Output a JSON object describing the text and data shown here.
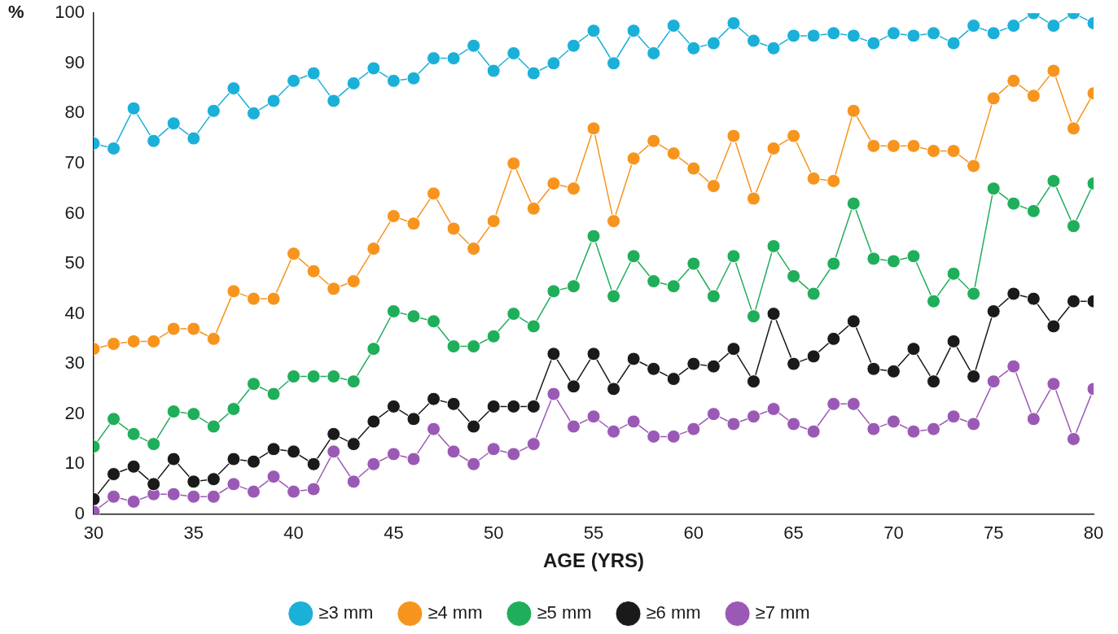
{
  "chart_data": {
    "type": "line",
    "xlabel": "AGE (YRS)",
    "ylabel": "%",
    "x": [
      30,
      31,
      32,
      33,
      34,
      35,
      36,
      37,
      38,
      39,
      40,
      41,
      42,
      43,
      44,
      45,
      46,
      47,
      48,
      49,
      50,
      51,
      52,
      53,
      54,
      55,
      56,
      57,
      58,
      59,
      60,
      61,
      62,
      63,
      64,
      65,
      66,
      67,
      68,
      69,
      70,
      71,
      72,
      73,
      74,
      75,
      76,
      77,
      78,
      79,
      80
    ],
    "xlim": [
      30,
      80
    ],
    "xticks": [
      30,
      35,
      40,
      45,
      50,
      55,
      60,
      65,
      70,
      75,
      80
    ],
    "ylim": [
      0,
      100
    ],
    "yticks": [
      0,
      10,
      20,
      30,
      40,
      50,
      60,
      70,
      80,
      90,
      100
    ],
    "grid": false,
    "legend": "bottom",
    "marker": "circle",
    "line_style": "solid",
    "series": [
      {
        "name": "≥3 mm",
        "color": "#1ab0d8",
        "values": [
          74,
          73,
          81,
          74.5,
          78,
          75,
          80.5,
          85,
          80,
          82.5,
          86.5,
          88,
          82.5,
          86,
          89,
          86.5,
          87,
          91,
          91,
          93.5,
          88.5,
          92,
          88,
          90,
          93.5,
          96.5,
          90,
          96.5,
          92,
          97.5,
          93,
          94,
          98,
          94.5,
          93,
          95.5,
          95.5,
          96,
          95.5,
          94,
          96,
          95.5,
          96,
          94,
          97.5,
          96,
          97.5,
          100,
          97.5,
          100,
          98
        ]
      },
      {
        "name": "≥4 mm",
        "color": "#f7941d",
        "values": [
          33,
          34,
          34.5,
          34.5,
          37,
          37,
          35,
          44.5,
          43,
          43,
          52,
          48.5,
          45,
          46.5,
          53,
          59.5,
          58,
          64,
          57,
          53,
          58.5,
          70,
          61,
          66,
          65,
          77,
          58.5,
          71,
          74.5,
          72,
          69,
          65.5,
          75.5,
          63,
          73,
          75.5,
          67,
          66.5,
          80.5,
          73.5,
          73.5,
          73.5,
          72.5,
          72.5,
          69.5,
          83,
          86.5,
          83.5,
          88.5,
          77,
          84
        ]
      },
      {
        "name": "≥5 mm",
        "color": "#1fae5a",
        "values": [
          13.5,
          19,
          16,
          14,
          20.5,
          20,
          17.5,
          21,
          26,
          24,
          27.5,
          27.5,
          27.5,
          26.5,
          33,
          40.5,
          39.5,
          38.5,
          33.5,
          33.5,
          35.5,
          40,
          37.5,
          44.5,
          45.5,
          55.5,
          43.5,
          51.5,
          46.5,
          45.5,
          50,
          43.5,
          51.5,
          39.5,
          53.5,
          47.5,
          44,
          50,
          62,
          51,
          50.5,
          51.5,
          42.5,
          48,
          44,
          65,
          62,
          60.5,
          66.5,
          57.5,
          66
        ]
      },
      {
        "name": "≥6 mm",
        "color": "#1a1a1a",
        "values": [
          3,
          8,
          9.5,
          6,
          11,
          6.5,
          7,
          11,
          10.5,
          13,
          12.5,
          10,
          16,
          14,
          18.5,
          21.5,
          19,
          23,
          22,
          17.5,
          21.5,
          21.5,
          21.5,
          32,
          25.5,
          32,
          25,
          31,
          29,
          27,
          30,
          29.5,
          33,
          26.5,
          40,
          30,
          31.5,
          35,
          38.5,
          29,
          28.5,
          33,
          26.5,
          34.5,
          27.5,
          40.5,
          44,
          43,
          37.5,
          42.5,
          42.5
        ]
      },
      {
        "name": "≥7 mm",
        "color": "#9b59b6",
        "values": [
          0.5,
          3.5,
          2.5,
          4,
          4,
          3.5,
          3.5,
          6,
          4.5,
          7.5,
          4.5,
          5,
          12.5,
          6.5,
          10,
          12,
          11,
          17,
          12.5,
          10,
          13,
          12,
          14,
          24,
          17.5,
          19.5,
          16.5,
          18.5,
          15.5,
          15.5,
          17,
          20,
          18,
          19.5,
          21,
          18,
          16.5,
          22,
          22,
          17,
          18.5,
          16.5,
          17,
          19.5,
          18,
          26.5,
          29.5,
          19,
          26,
          15,
          25
        ]
      }
    ]
  }
}
